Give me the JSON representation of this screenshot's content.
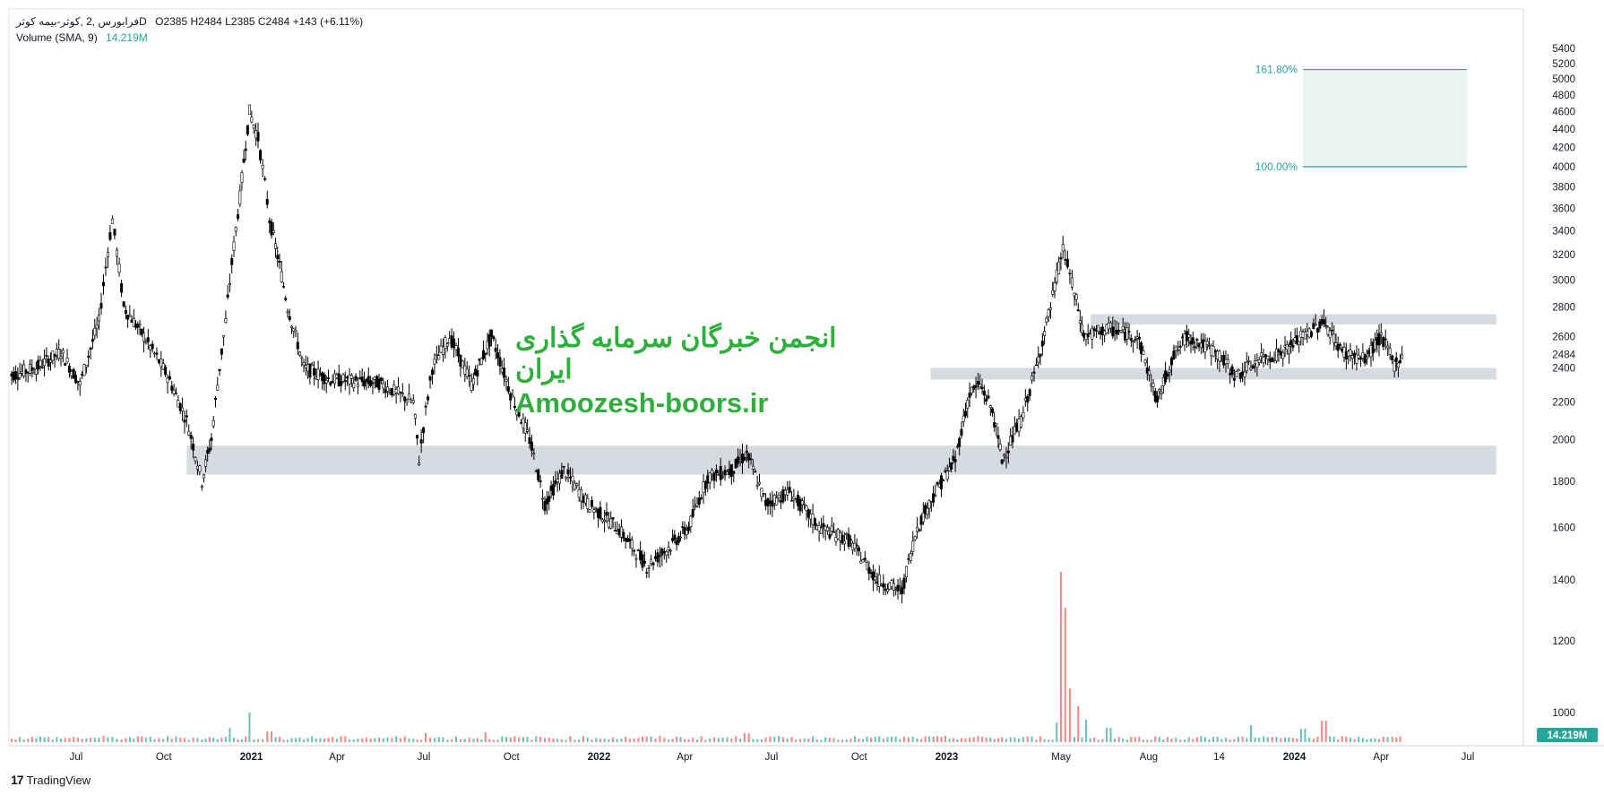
{
  "legend": {
    "symbol": "فرابورس ,2 ,کوثر-بیمه کوثرD",
    "ohlc": "O2385  H2484  L2385  C2484  +143 (+6.11%)",
    "volume_label": "Volume (SMA, 9)",
    "volume_value": "14.219M"
  },
  "watermark": {
    "persian": "انجمن خبرگان سرمایه گذاری ایران",
    "english": "Amoozesh-boors.ir"
  },
  "brand": {
    "logo": "17",
    "name": "TradingView"
  },
  "colors": {
    "candle": "#000000",
    "vol_up": "#26a69a",
    "vol_down": "#ef5350",
    "zone": "#d1d4dc",
    "fib": "#26a69a",
    "fib_fill": "#e8f5f1",
    "watermark": "#2fae3e"
  },
  "chart_data": {
    "type": "candlestick",
    "x_tick_labels": [
      "Jul",
      "Oct",
      "2021",
      "Apr",
      "Jul",
      "Oct",
      "2022",
      "Apr",
      "Jul",
      "Oct",
      "2023",
      "May",
      "Aug",
      "14",
      "2024",
      "Apr",
      "Jul"
    ],
    "x_tick_dates": [
      "2020-07-01",
      "2020-10-01",
      "2021-01-01",
      "2021-04-01",
      "2021-07-01",
      "2021-10-01",
      "2022-01-01",
      "2022-04-01",
      "2022-07-01",
      "2022-10-01",
      "2023-01-01",
      "2023-05-01",
      "2023-08-01",
      "2023-10-14",
      "2024-01-01",
      "2024-04-01",
      "2024-07-01"
    ],
    "y_ticks": [
      1000,
      1200,
      1400,
      1600,
      1800,
      2000,
      2200,
      2400,
      2600,
      2800,
      3000,
      3200,
      3400,
      3600,
      3800,
      4000,
      4200,
      4400,
      4600,
      4800,
      5000,
      5200,
      5400
    ],
    "ylim": [
      860,
      5450
    ],
    "last_price": "2484",
    "last_volume_label": "14.219M",
    "price_path": [
      [
        "2020-04-20",
        2350
      ],
      [
        "2020-05-20",
        2400
      ],
      [
        "2020-06-15",
        2500
      ],
      [
        "2020-07-05",
        2300
      ],
      [
        "2020-07-25",
        2700
      ],
      [
        "2020-08-08",
        3500
      ],
      [
        "2020-08-20",
        2800
      ],
      [
        "2020-09-10",
        2600
      ],
      [
        "2020-10-05",
        2350
      ],
      [
        "2020-10-25",
        2100
      ],
      [
        "2020-11-10",
        1800
      ],
      [
        "2020-11-20",
        2000
      ],
      [
        "2020-12-05",
        2700
      ],
      [
        "2020-12-20",
        3700
      ],
      [
        "2020-12-30",
        4600
      ],
      [
        "2021-01-08",
        4300
      ],
      [
        "2021-01-20",
        3500
      ],
      [
        "2021-02-08",
        2800
      ],
      [
        "2021-02-25",
        2400
      ],
      [
        "2021-03-25",
        2330
      ],
      [
        "2021-05-15",
        2310
      ],
      [
        "2021-06-20",
        2200
      ],
      [
        "2021-06-26",
        1900
      ],
      [
        "2021-07-10",
        2400
      ],
      [
        "2021-07-28",
        2600
      ],
      [
        "2021-08-20",
        2300
      ],
      [
        "2021-09-10",
        2600
      ],
      [
        "2021-09-30",
        2250
      ],
      [
        "2021-10-20",
        2000
      ],
      [
        "2021-11-05",
        1700
      ],
      [
        "2021-11-25",
        1850
      ],
      [
        "2021-12-20",
        1700
      ],
      [
        "2022-01-20",
        1600
      ],
      [
        "2022-02-20",
        1450
      ],
      [
        "2022-03-15",
        1520
      ],
      [
        "2022-04-05",
        1600
      ],
      [
        "2022-04-25",
        1820
      ],
      [
        "2022-05-20",
        1850
      ],
      [
        "2022-06-05",
        1930
      ],
      [
        "2022-06-25",
        1700
      ],
      [
        "2022-07-20",
        1750
      ],
      [
        "2022-08-20",
        1600
      ],
      [
        "2022-09-20",
        1550
      ],
      [
        "2022-10-20",
        1400
      ],
      [
        "2022-11-15",
        1360
      ],
      [
        "2022-12-01",
        1600
      ],
      [
        "2022-12-20",
        1750
      ],
      [
        "2023-01-10",
        1900
      ],
      [
        "2023-01-25",
        2250
      ],
      [
        "2023-02-05",
        2300
      ],
      [
        "2023-02-18",
        2150
      ],
      [
        "2023-02-28",
        1900
      ],
      [
        "2023-03-20",
        2100
      ],
      [
        "2023-04-05",
        2400
      ],
      [
        "2023-04-20",
        2800
      ],
      [
        "2023-05-03",
        3250
      ],
      [
        "2023-05-15",
        2900
      ],
      [
        "2023-05-25",
        2600
      ],
      [
        "2023-06-20",
        2650
      ],
      [
        "2023-07-20",
        2600
      ],
      [
        "2023-08-10",
        2200
      ],
      [
        "2023-08-25",
        2450
      ],
      [
        "2023-09-10",
        2600
      ],
      [
        "2023-10-10",
        2500
      ],
      [
        "2023-11-01",
        2350
      ],
      [
        "2023-11-25",
        2450
      ],
      [
        "2023-12-20",
        2500
      ],
      [
        "2024-01-10",
        2600
      ],
      [
        "2024-02-01",
        2700
      ],
      [
        "2024-02-20",
        2500
      ],
      [
        "2024-03-15",
        2450
      ],
      [
        "2024-04-01",
        2600
      ],
      [
        "2024-04-15",
        2420
      ],
      [
        "2024-04-25",
        2484
      ]
    ],
    "volume_spikes": [
      [
        "2020-12-10",
        1.6
      ],
      [
        "2021-01-01",
        3.3
      ],
      [
        "2021-01-20",
        1.2
      ],
      [
        "2021-07-01",
        1.0
      ],
      [
        "2021-09-05",
        1.1
      ],
      [
        "2022-06-05",
        1.0
      ],
      [
        "2023-04-25",
        2.2
      ],
      [
        "2023-05-01",
        19.0
      ],
      [
        "2023-05-05",
        15.0
      ],
      [
        "2023-05-08",
        12.5
      ],
      [
        "2023-05-12",
        6.0
      ],
      [
        "2023-05-20",
        4.0
      ],
      [
        "2023-05-28",
        2.5
      ],
      [
        "2023-06-20",
        1.6
      ],
      [
        "2023-11-15",
        1.9
      ],
      [
        "2024-01-10",
        1.5
      ],
      [
        "2024-02-01",
        2.4
      ]
    ],
    "zones": [
      {
        "from_date": "2020-10-25",
        "to_date": "2024-07-31",
        "low": 1830,
        "high": 1970
      },
      {
        "from_date": "2022-12-15",
        "to_date": "2024-07-31",
        "low": 2330,
        "high": 2400
      },
      {
        "from_date": "2023-06-01",
        "to_date": "2024-07-31",
        "low": 2680,
        "high": 2750
      }
    ],
    "fib_levels": [
      {
        "label": "161.80%",
        "price": 5120
      },
      {
        "label": "100.00%",
        "price": 4000
      }
    ],
    "fib_from_date": "2024-01-10",
    "fib_to_date": "2024-06-30",
    "grid": false
  }
}
